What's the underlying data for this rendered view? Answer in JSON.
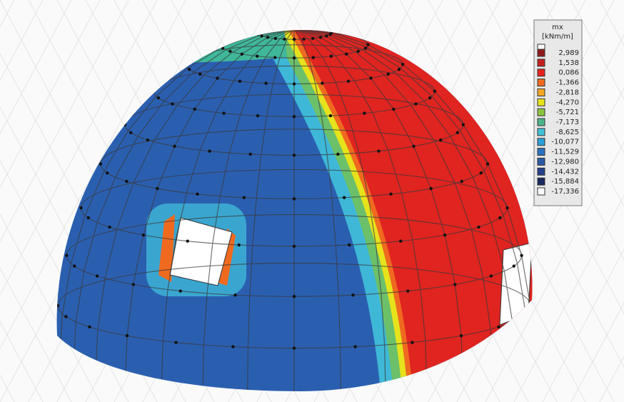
{
  "legend": {
    "title": "mx",
    "unit": "[kNm/m]",
    "items": [
      {
        "label": "2,989",
        "color": "#8e1b1b"
      },
      {
        "label": "1,538",
        "color": "#c42020"
      },
      {
        "label": "0,086",
        "color": "#e6231c"
      },
      {
        "label": "-1,366",
        "color": "#ef6a1f"
      },
      {
        "label": "-2,818",
        "color": "#f5a623"
      },
      {
        "label": "-4,270",
        "color": "#e6e21c"
      },
      {
        "label": "-5,721",
        "color": "#8cc63f"
      },
      {
        "label": "-7,173",
        "color": "#4fb58a"
      },
      {
        "label": "-8,625",
        "color": "#40c2da"
      },
      {
        "label": "-10,077",
        "color": "#2a9fd8"
      },
      {
        "label": "-11,529",
        "color": "#2a70c0"
      },
      {
        "label": "-12,980",
        "color": "#2a5aa6"
      },
      {
        "label": "-14,432",
        "color": "#24408a"
      },
      {
        "label": "-15,884",
        "color": "#1a2a60"
      },
      {
        "label": "-17,336",
        "color": "#ffffff"
      }
    ]
  }
}
